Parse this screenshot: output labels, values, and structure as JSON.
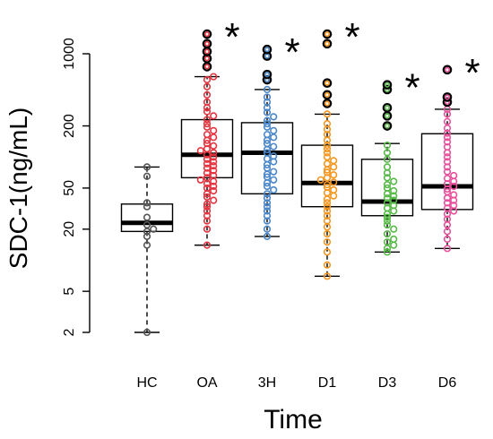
{
  "chart_data": {
    "type": "box",
    "xlabel": "Time",
    "ylabel": "SDC-1(ng/mL)",
    "yscale": "log",
    "ylim": [
      2,
      1000
    ],
    "yticks": [
      {
        "value": 2,
        "label": "2"
      },
      {
        "value": 5,
        "label": "5"
      },
      {
        "value": 20,
        "label": "20"
      },
      {
        "value": 50,
        "label": "50"
      },
      {
        "value": 200,
        "label": "200"
      },
      {
        "value": 1000,
        "label": "1000"
      }
    ],
    "groups": [
      {
        "name": "HC",
        "color": "#555555",
        "significance": "",
        "box": {
          "whisker_low": 2,
          "q1": 19,
          "median": 23,
          "q3": 35,
          "whisker_high": 80
        },
        "points": [
          2,
          14,
          17,
          19,
          20,
          22,
          26,
          33,
          36,
          65,
          80
        ]
      },
      {
        "name": "OA",
        "color": "#e3343f",
        "significance": "*",
        "box": {
          "whisker_low": 14,
          "q1": 63,
          "median": 105,
          "q3": 230,
          "whisker_high": 600
        },
        "points": [
          14,
          20,
          24,
          27,
          30,
          33,
          35,
          38,
          41,
          44,
          47,
          50,
          52,
          55,
          58,
          60,
          63,
          66,
          70,
          74,
          78,
          82,
          86,
          90,
          95,
          100,
          105,
          110,
          115,
          120,
          128,
          135,
          145,
          155,
          165,
          180,
          195,
          210,
          230,
          250,
          275,
          300,
          340,
          400,
          480,
          560,
          600,
          750,
          900,
          1050,
          1250,
          1550
        ]
      },
      {
        "name": "3H",
        "color": "#4a86c8",
        "significance": "*",
        "box": {
          "whisker_low": 17,
          "q1": 44,
          "median": 110,
          "q3": 215,
          "whisker_high": 450
        },
        "points": [
          17,
          20,
          24,
          27,
          30,
          33,
          36,
          40,
          44,
          48,
          52,
          56,
          60,
          64,
          68,
          72,
          78,
          84,
          90,
          96,
          102,
          110,
          118,
          126,
          135,
          145,
          155,
          165,
          180,
          195,
          210,
          225,
          245,
          270,
          300,
          340,
          380,
          450,
          560,
          630,
          950,
          1100
        ]
      },
      {
        "name": "D1",
        "color": "#f5961e",
        "significance": "*",
        "box": {
          "whisker_low": 7,
          "q1": 33,
          "median": 56,
          "q3": 130,
          "whisker_high": 260
        },
        "points": [
          7,
          9,
          12,
          15,
          18,
          21,
          24,
          27,
          30,
          33,
          36,
          39,
          42,
          45,
          48,
          51,
          54,
          57,
          60,
          63,
          67,
          71,
          75,
          80,
          86,
          92,
          100,
          110,
          120,
          130,
          145,
          165,
          185,
          210,
          260,
          330,
          400,
          520,
          1250,
          1550
        ]
      },
      {
        "name": "D3",
        "color": "#57b947",
        "significance": "*",
        "box": {
          "whisker_low": 12,
          "q1": 27,
          "median": 37,
          "q3": 95,
          "whisker_high": 135
        },
        "points": [
          12,
          13,
          14,
          15,
          16,
          18,
          20,
          22,
          24,
          26,
          28,
          30,
          32,
          34,
          36,
          38,
          40,
          42,
          44,
          47,
          50,
          54,
          58,
          63,
          70,
          80,
          95,
          110,
          130,
          200,
          250,
          300,
          450,
          500
        ]
      },
      {
        "name": "D6",
        "color": "#e8509c",
        "significance": "*",
        "box": {
          "whisker_low": 13,
          "q1": 31,
          "median": 52,
          "q3": 168,
          "whisker_high": 290
        },
        "points": [
          13,
          16,
          19,
          22,
          25,
          28,
          30,
          32,
          34,
          36,
          38,
          40,
          43,
          46,
          49,
          52,
          55,
          58,
          62,
          66,
          72,
          80,
          90,
          100,
          110,
          125,
          140,
          155,
          170,
          190,
          220,
          260,
          290,
          340,
          380,
          700
        ]
      }
    ]
  }
}
